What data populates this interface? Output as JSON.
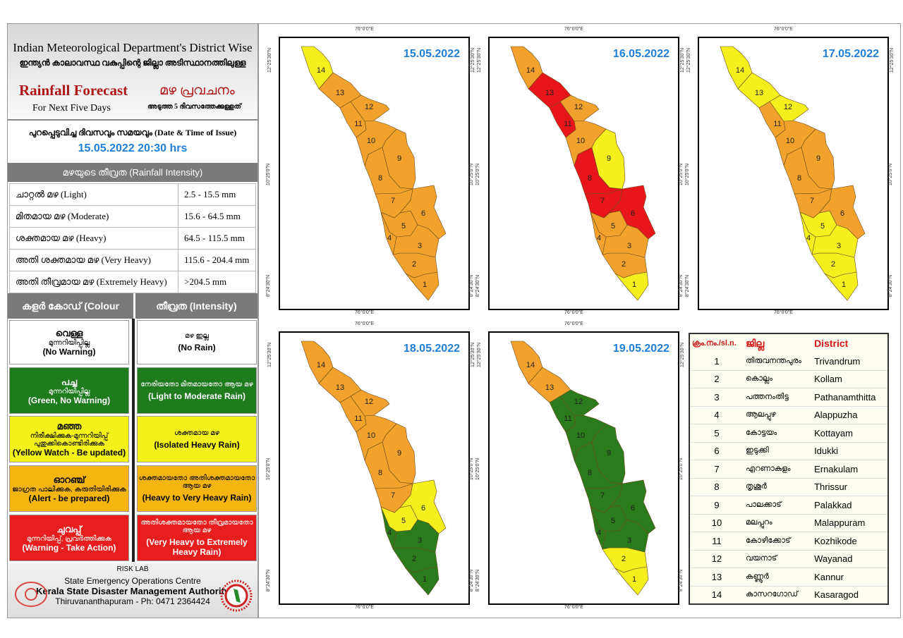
{
  "header": {
    "title_en": "Indian Meteorological Department's District Wise",
    "title_ml": "ഇന്ത്യൻ കാലാവസ്ഥ വകുപ്പിന്റെ ജില്ലാ അടിസ്ഥാനത്തിലുള്ള",
    "forecast_en": "Rainfall Forecast",
    "forecast_ml": "മഴ പ്രവചനം",
    "sub_en": "For Next Five Days",
    "sub_ml": "അടുത്ത 5 ദിവസത്തേക്കുള്ളത്"
  },
  "issue": {
    "label": "പുറപ്പെടുവിച്ച ദിവസവും സമയവും (Date & Time of Issue)",
    "value": "15.05.2022 20:30 hrs"
  },
  "intensity": {
    "title": "മഴയുടെ തീവ്രത (Rainfall Intensity)",
    "rows": [
      {
        "label": "ചാറ്റൽ മഴ (Light)",
        "range": "2.5 - 15.5 mm"
      },
      {
        "label": "മിതമായ മഴ (Moderate)",
        "range": "15.6 - 64.5 mm"
      },
      {
        "label": "ശക്തമായ മഴ (Heavy)",
        "range": "64.5 - 115.5 mm"
      },
      {
        "label": "അതി ശക്തമായ മഴ (Very Heavy)",
        "range": "115.6 - 204.4 mm"
      },
      {
        "label": "അതി തീവ്രമായ മഴ (Extremely Heavy)",
        "range": ">204.5 mm"
      }
    ]
  },
  "legend": {
    "colour_header": "കളർ കോഡ് (Colour Code)",
    "intensity_header": "തീവ്രത (Intensity)",
    "rows": [
      {
        "key": "white",
        "color": "#ffffff",
        "fg": "#000000",
        "c1": "വെള്ള",
        "c2": "മുന്നറിയിപ്പില്ല",
        "c3": "(No Warning)",
        "i1": "മഴ ഇല്ല",
        "i2": "(No Rain)"
      },
      {
        "key": "green",
        "color": "#1e7b1e",
        "fg": "#ffffff",
        "c1": "പച്ച",
        "c2": "മുന്നറിയിപ്പില്ല",
        "c3": "(Green, No Warning)",
        "i1": "നേരിയതോ മിതമായതോ ആയ മഴ",
        "i2": "(Light to Moderate Rain)"
      },
      {
        "key": "yellow",
        "color": "#f2f21a",
        "fg": "#000000",
        "c1": "മഞ്ഞ",
        "c2": "നിരീക്ഷിക്കുക-മുന്നറിയിപ്പ് പുതുക്കികൊണ്ടിരിക്കുക",
        "c3": "(Yellow Watch - Be updated)",
        "i1": "ശക്തമായ മഴ",
        "i2": "(Isolated Heavy Rain)"
      },
      {
        "key": "orange",
        "color": "#f5b510",
        "fg": "#000000",
        "c1": "ഓറഞ്ച്",
        "c2": "ജാഗ്രത പാലിക്കുക, കരുതിയിരിക്കുക",
        "c3": "(Alert - be prepared)",
        "i1": "ശക്തമായതോ അതിശക്തമായതോ ആയ മഴ",
        "i2": "(Heavy to Very Heavy Rain)"
      },
      {
        "key": "red",
        "color": "#e81e1e",
        "fg": "#ffffff",
        "c1": "ചുവപ്പ്",
        "c2": "മുന്നറിയിപ്പ്, പ്രവർത്തിക്കുക",
        "c3": "(Warning - Take Action)",
        "i1": "അതിശക്തമായതോ തീവ്രമായതോ ആയ മഴ",
        "i2": "(Very Heavy to Extremely Heavy Rain)"
      }
    ]
  },
  "footer": {
    "lab": "RISK LAB",
    "centre": "State Emergency Operations Centre",
    "authority": "Kerala State Disaster Management Authority",
    "address": "Thiruvananthapuram - Ph: 0471 2364424"
  },
  "map_colors": {
    "yellow": "#f5ef1e",
    "orange": "#f2a22c",
    "red": "#e8161b",
    "green": "#2b7a1c"
  },
  "axis": {
    "lon": "76°0'0\"E",
    "lat_n": "12°25'30\"N",
    "lat_m": "10°25'0\"N",
    "lat_s": "8°24'30\"N"
  },
  "days": [
    {
      "date": "15.05.2022",
      "levels": [
        "orange",
        "orange",
        "orange",
        "orange",
        "orange",
        "orange",
        "orange",
        "orange",
        "orange",
        "orange",
        "orange",
        "orange",
        "orange",
        "yellow"
      ]
    },
    {
      "date": "16.05.2022",
      "levels": [
        "yellow",
        "orange",
        "orange",
        "orange",
        "orange",
        "red",
        "red",
        "red",
        "yellow",
        "orange",
        "red",
        "orange",
        "red",
        "orange"
      ]
    },
    {
      "date": "17.05.2022",
      "levels": [
        "yellow",
        "yellow",
        "yellow",
        "yellow",
        "yellow",
        "orange",
        "orange",
        "orange",
        "orange",
        "orange",
        "orange",
        "yellow",
        "yellow",
        "yellow"
      ]
    },
    {
      "date": "18.05.2022",
      "levels": [
        "green",
        "green",
        "green",
        "green",
        "yellow",
        "yellow",
        "orange",
        "orange",
        "orange",
        "orange",
        "orange",
        "orange",
        "orange",
        "orange"
      ]
    },
    {
      "date": "19.05.2022",
      "levels": [
        "yellow",
        "yellow",
        "green",
        "green",
        "green",
        "green",
        "green",
        "green",
        "green",
        "green",
        "green",
        "green",
        "orange",
        "orange"
      ]
    }
  ],
  "districts": {
    "headers": [
      "ക്രം.നം./sl.n.",
      "ജില്ല",
      "District"
    ],
    "rows": [
      [
        "1",
        "തിരുവനന്തപുരം",
        "Trivandrum"
      ],
      [
        "2",
        "കൊല്ലം",
        "Kollam"
      ],
      [
        "3",
        "പത്തനംതിട്ട",
        "Pathanamthitta"
      ],
      [
        "4",
        "ആലപ്പുഴ",
        "Alappuzha"
      ],
      [
        "5",
        "കോട്ടയം",
        "Kottayam"
      ],
      [
        "6",
        "ഇടുക്കി",
        "Idukki"
      ],
      [
        "7",
        "എറണാകുളം",
        "Ernakulam"
      ],
      [
        "8",
        "തൃശൂർ",
        "Thrissur"
      ],
      [
        "9",
        "പാലക്കാട്",
        "Palakkad"
      ],
      [
        "10",
        "മലപ്പുറം",
        "Malappuram"
      ],
      [
        "11",
        "കോഴിക്കോട്",
        "Kozhikode"
      ],
      [
        "12",
        "വയനാട്",
        "Wayanad"
      ],
      [
        "13",
        "കണ്ണൂർ",
        "Kannur"
      ],
      [
        "14",
        "കാസറഗോഡ്",
        "Kasaragod"
      ]
    ]
  }
}
